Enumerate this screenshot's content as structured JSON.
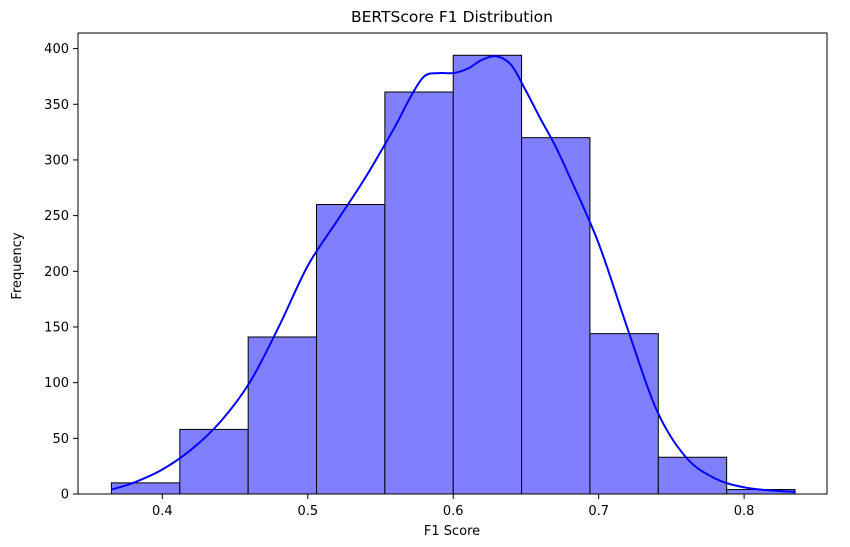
{
  "chart_data": {
    "type": "bar",
    "title": "BERTScore F1 Distribution",
    "xlabel": "F1 Score",
    "ylabel": "Frequency",
    "xlim": [
      0.342,
      0.857
    ],
    "ylim": [
      0,
      414
    ],
    "xticks": [
      0.4,
      0.5,
      0.6,
      0.7,
      0.8
    ],
    "yticks": [
      0,
      50,
      100,
      150,
      200,
      250,
      300,
      350,
      400
    ],
    "bins": [
      {
        "x0": 0.365,
        "x1": 0.412,
        "count": 10
      },
      {
        "x0": 0.412,
        "x1": 0.459,
        "count": 58
      },
      {
        "x0": 0.459,
        "x1": 0.506,
        "count": 141
      },
      {
        "x0": 0.506,
        "x1": 0.553,
        "count": 260
      },
      {
        "x0": 0.553,
        "x1": 0.6,
        "count": 361
      },
      {
        "x0": 0.6,
        "x1": 0.647,
        "count": 394
      },
      {
        "x0": 0.647,
        "x1": 0.694,
        "count": 320
      },
      {
        "x0": 0.694,
        "x1": 0.741,
        "count": 144
      },
      {
        "x0": 0.741,
        "x1": 0.788,
        "count": 33
      },
      {
        "x0": 0.788,
        "x1": 0.835,
        "count": 4
      }
    ],
    "kde": {
      "x": [
        0.365,
        0.38,
        0.4,
        0.42,
        0.44,
        0.46,
        0.48,
        0.5,
        0.52,
        0.54,
        0.56,
        0.57,
        0.58,
        0.59,
        0.6,
        0.61,
        0.62,
        0.63,
        0.64,
        0.65,
        0.66,
        0.67,
        0.68,
        0.7,
        0.72,
        0.74,
        0.76,
        0.78,
        0.8,
        0.82,
        0.835
      ],
      "y": [
        4,
        10,
        22,
        40,
        65,
        100,
        150,
        205,
        245,
        285,
        330,
        355,
        375,
        378,
        378,
        382,
        390,
        393,
        385,
        362,
        337,
        313,
        285,
        225,
        148,
        75,
        33,
        14,
        6,
        3,
        2
      ]
    },
    "bar_fill": "#8080ff",
    "bar_edge": "#000000",
    "kde_color": "#0000ff",
    "grid": false
  }
}
